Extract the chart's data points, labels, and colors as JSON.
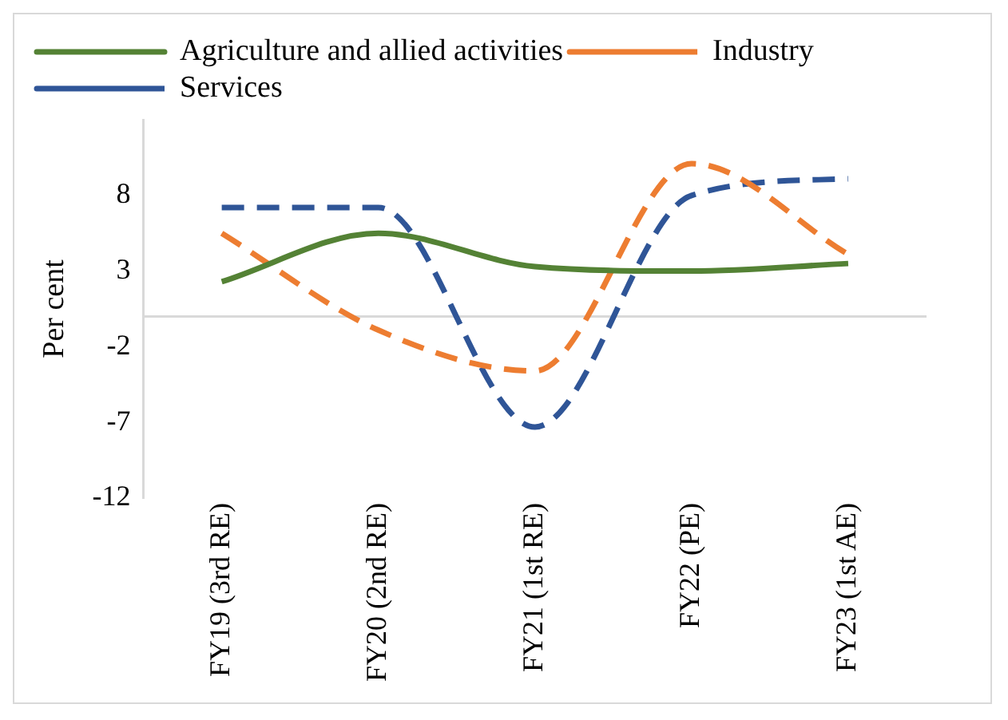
{
  "chart_data": {
    "type": "line",
    "ylabel": "Per cent",
    "categories": [
      "FY19 (3rd RE)",
      "FY20 (2nd RE)",
      "FY21 (1st RE)",
      "FY22 (PE)",
      "FY23 (1st AE)"
    ],
    "series": [
      {
        "name": "Agriculture and allied activities",
        "color": "#548235",
        "line_style": "solid",
        "values": [
          2.3,
          5.5,
          3.3,
          3.0,
          3.5
        ]
      },
      {
        "name": "Industry",
        "color": "#ed7d31",
        "line_style": "dashed",
        "values": [
          5.5,
          -0.9,
          -3.6,
          10.1,
          4.1
        ]
      },
      {
        "name": "Services",
        "color": "#2f5597",
        "line_style": "dashed",
        "values": [
          7.2,
          7.2,
          -7.3,
          8.0,
          9.1
        ]
      }
    ],
    "ylim": [
      -12,
      13
    ],
    "yticks": [
      -12,
      -7,
      -2,
      3,
      8
    ],
    "grid": false,
    "legend": "top",
    "marker": "none",
    "ref_lines": [
      {
        "axis": "y",
        "value": 0,
        "color": "#d9d9d9"
      }
    ]
  }
}
